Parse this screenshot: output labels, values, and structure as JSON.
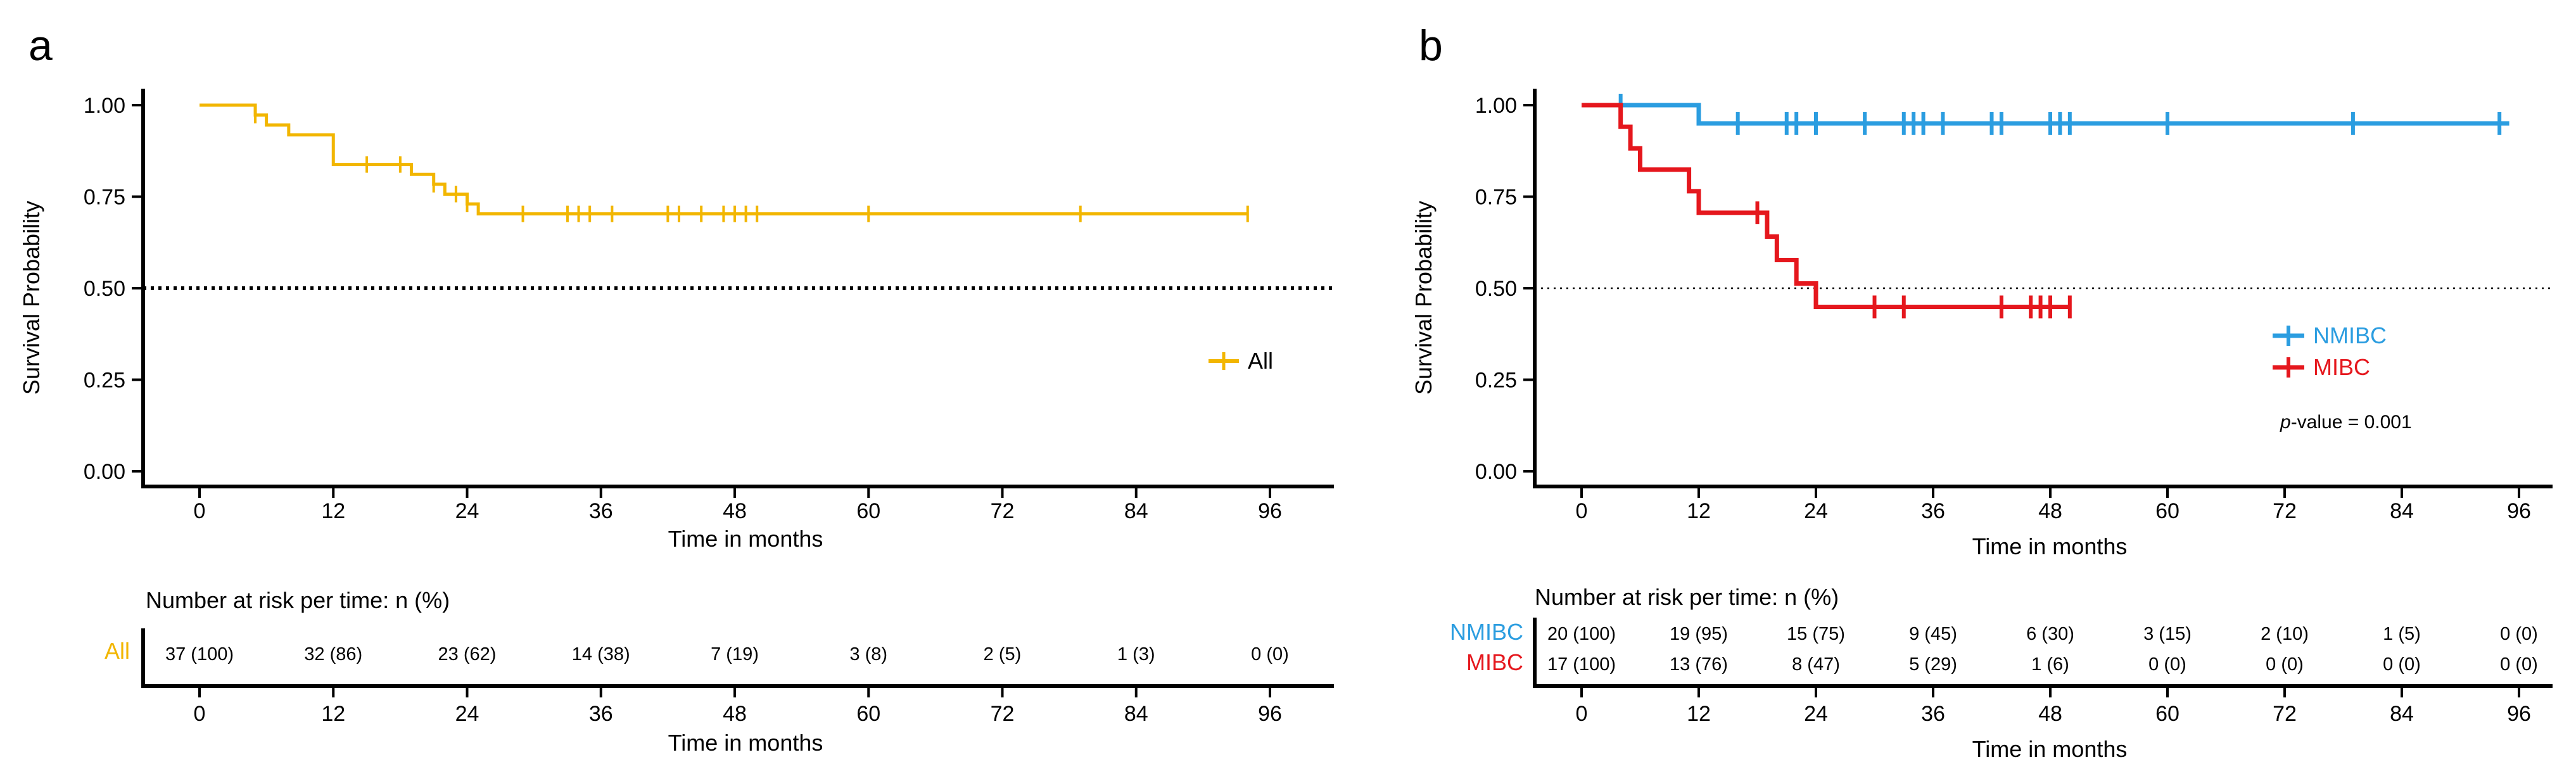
{
  "panels": [
    {
      "letter": "a",
      "km": {
        "ylabel": "Survival Probability",
        "xlabel": "Time in months",
        "xticks": [
          0,
          12,
          24,
          36,
          48,
          60,
          72,
          84,
          96
        ],
        "yticks": [
          "0.00",
          "0.25",
          "0.50",
          "0.75",
          "1.00"
        ],
        "legend": [
          "All"
        ]
      },
      "risk": {
        "title": "Number at risk per time: n (%)",
        "rows": [
          {
            "label": "All",
            "values": [
              "37 (100)",
              "32 (86)",
              "23 (62)",
              "14 (38)",
              "7 (19)",
              "3 (8)",
              "2 (5)",
              "1 (3)",
              "0 (0)"
            ]
          }
        ],
        "xlabel": "Time in months"
      }
    },
    {
      "letter": "b",
      "km": {
        "ylabel": "Survival Probability",
        "xlabel": "Time in months",
        "xticks": [
          0,
          12,
          24,
          36,
          48,
          60,
          72,
          84,
          96
        ],
        "yticks": [
          "0.00",
          "0.25",
          "0.50",
          "0.75",
          "1.00"
        ],
        "legend": [
          "NMIBC",
          "MIBC"
        ],
        "pvalue_italic": "p",
        "pvalue_rest": "-value = 0.001"
      },
      "risk": {
        "title": "Number at risk per time: n (%)",
        "rows": [
          {
            "label": "NMIBC",
            "values": [
              "20 (100)",
              "19 (95)",
              "15 (75)",
              "9 (45)",
              "6 (30)",
              "3 (15)",
              "2 (10)",
              "1 (5)",
              "0 (0)"
            ]
          },
          {
            "label": "MIBC",
            "values": [
              "17 (100)",
              "13 (76)",
              "8 (47)",
              "5 (29)",
              "1 (6)",
              "0 (0)",
              "0 (0)",
              "0 (0)",
              "0 (0)"
            ]
          }
        ],
        "xlabel": "Time in months"
      }
    }
  ],
  "chart_data": [
    {
      "type": "line",
      "subtype": "kaplan-meier",
      "title": "",
      "xlabel": "Time in months",
      "ylabel": "Survival Probability",
      "xlim": [
        0,
        96
      ],
      "ylim": [
        0,
        1
      ],
      "reference_line": 0.5,
      "series": [
        {
          "name": "All",
          "color": "#f2b600",
          "steps": [
            [
              0,
              1.0
            ],
            [
              5,
              0.973
            ],
            [
              6,
              0.946
            ],
            [
              8,
              0.919
            ],
            [
              12,
              0.838
            ],
            [
              17,
              0.838
            ],
            [
              19,
              0.811
            ],
            [
              21,
              0.784
            ],
            [
              22,
              0.757
            ],
            [
              24,
              0.73
            ],
            [
              25,
              0.703
            ],
            [
              94,
              0.703
            ]
          ],
          "censored": [
            [
              5,
              0.973
            ],
            [
              15,
              0.838
            ],
            [
              18,
              0.838
            ],
            [
              21,
              0.784
            ],
            [
              23,
              0.757
            ],
            [
              24,
              0.73
            ],
            [
              29,
              0.703
            ],
            [
              33,
              0.703
            ],
            [
              34,
              0.703
            ],
            [
              35,
              0.703
            ],
            [
              37,
              0.703
            ],
            [
              42,
              0.703
            ],
            [
              43,
              0.703
            ],
            [
              45,
              0.703
            ],
            [
              47,
              0.703
            ],
            [
              48,
              0.703
            ],
            [
              49,
              0.703
            ],
            [
              50,
              0.703
            ],
            [
              60,
              0.703
            ],
            [
              79,
              0.703
            ],
            [
              94,
              0.703
            ]
          ]
        }
      ]
    },
    {
      "type": "line",
      "subtype": "kaplan-meier",
      "title": "",
      "xlabel": "Time in months",
      "ylabel": "Survival Probability",
      "xlim": [
        0,
        96
      ],
      "ylim": [
        0,
        1
      ],
      "reference_line": 0.5,
      "pvalue": "p-value = 0.001",
      "series": [
        {
          "name": "NMIBC",
          "color": "#2b9de0",
          "steps": [
            [
              0,
              1.0
            ],
            [
              12,
              0.95
            ],
            [
              95,
              0.95
            ]
          ],
          "censored": [
            [
              4,
              1.0
            ],
            [
              16,
              0.95
            ],
            [
              21,
              0.95
            ],
            [
              22,
              0.95
            ],
            [
              24,
              0.95
            ],
            [
              29,
              0.95
            ],
            [
              33,
              0.95
            ],
            [
              34,
              0.95
            ],
            [
              35,
              0.95
            ],
            [
              37,
              0.95
            ],
            [
              42,
              0.95
            ],
            [
              43,
              0.95
            ],
            [
              48,
              0.95
            ],
            [
              49,
              0.95
            ],
            [
              50,
              0.95
            ],
            [
              60,
              0.95
            ],
            [
              79,
              0.95
            ],
            [
              94,
              0.95
            ]
          ]
        },
        {
          "name": "MIBC",
          "color": "#e5171d",
          "steps": [
            [
              0,
              1.0
            ],
            [
              4,
              0.941
            ],
            [
              5,
              0.882
            ],
            [
              6,
              0.824
            ],
            [
              11,
              0.765
            ],
            [
              12,
              0.706
            ],
            [
              18,
              0.706
            ],
            [
              19,
              0.641
            ],
            [
              20,
              0.577
            ],
            [
              22,
              0.513
            ],
            [
              24,
              0.449
            ],
            [
              50,
              0.449
            ]
          ],
          "censored": [
            [
              18,
              0.706
            ],
            [
              30,
              0.449
            ],
            [
              33,
              0.449
            ],
            [
              43,
              0.449
            ],
            [
              46,
              0.449
            ],
            [
              47,
              0.449
            ],
            [
              48,
              0.449
            ],
            [
              50,
              0.449
            ]
          ]
        }
      ]
    }
  ]
}
